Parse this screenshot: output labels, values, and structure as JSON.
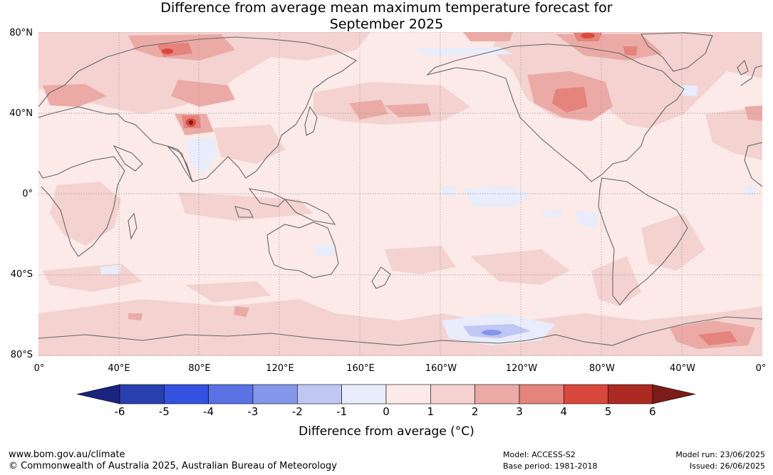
{
  "title_line1": "Difference from average mean maximum temperature forecast for",
  "title_line2": "September 2025",
  "lat_labels": [
    "80°N",
    "40°N",
    "0°",
    "40°S",
    "80°S"
  ],
  "lon_labels": [
    "0°",
    "40°E",
    "80°E",
    "120°E",
    "160°E",
    "160°W",
    "120°W",
    "80°W",
    "40°W",
    "0°"
  ],
  "colorbar": {
    "ticks": [
      "-6",
      "-5",
      "-4",
      "-3",
      "-2",
      "-1",
      "0",
      "1",
      "2",
      "3",
      "4",
      "5",
      "6"
    ],
    "colors": [
      "#1a237e",
      "#283fb0",
      "#3352e0",
      "#5a72e4",
      "#8595ea",
      "#bfc7f2",
      "#e8ecfb",
      "#fbeae8",
      "#f3d2cf",
      "#ebaaa6",
      "#e5837d",
      "#d9483d",
      "#ac2a22",
      "#7a1c17"
    ],
    "label": "Difference from average (°C)"
  },
  "footer": {
    "website": "www.bom.gov.au/climate",
    "copyright": "© Commonwealth of Australia 2025, Australian Bureau of Meteorology",
    "model": "Model: ACCESS-S2",
    "base_period": "Base period: 1981-2018",
    "model_run": "Model run: 23/06/2025",
    "issued": "Issued: 26/06/2025"
  }
}
